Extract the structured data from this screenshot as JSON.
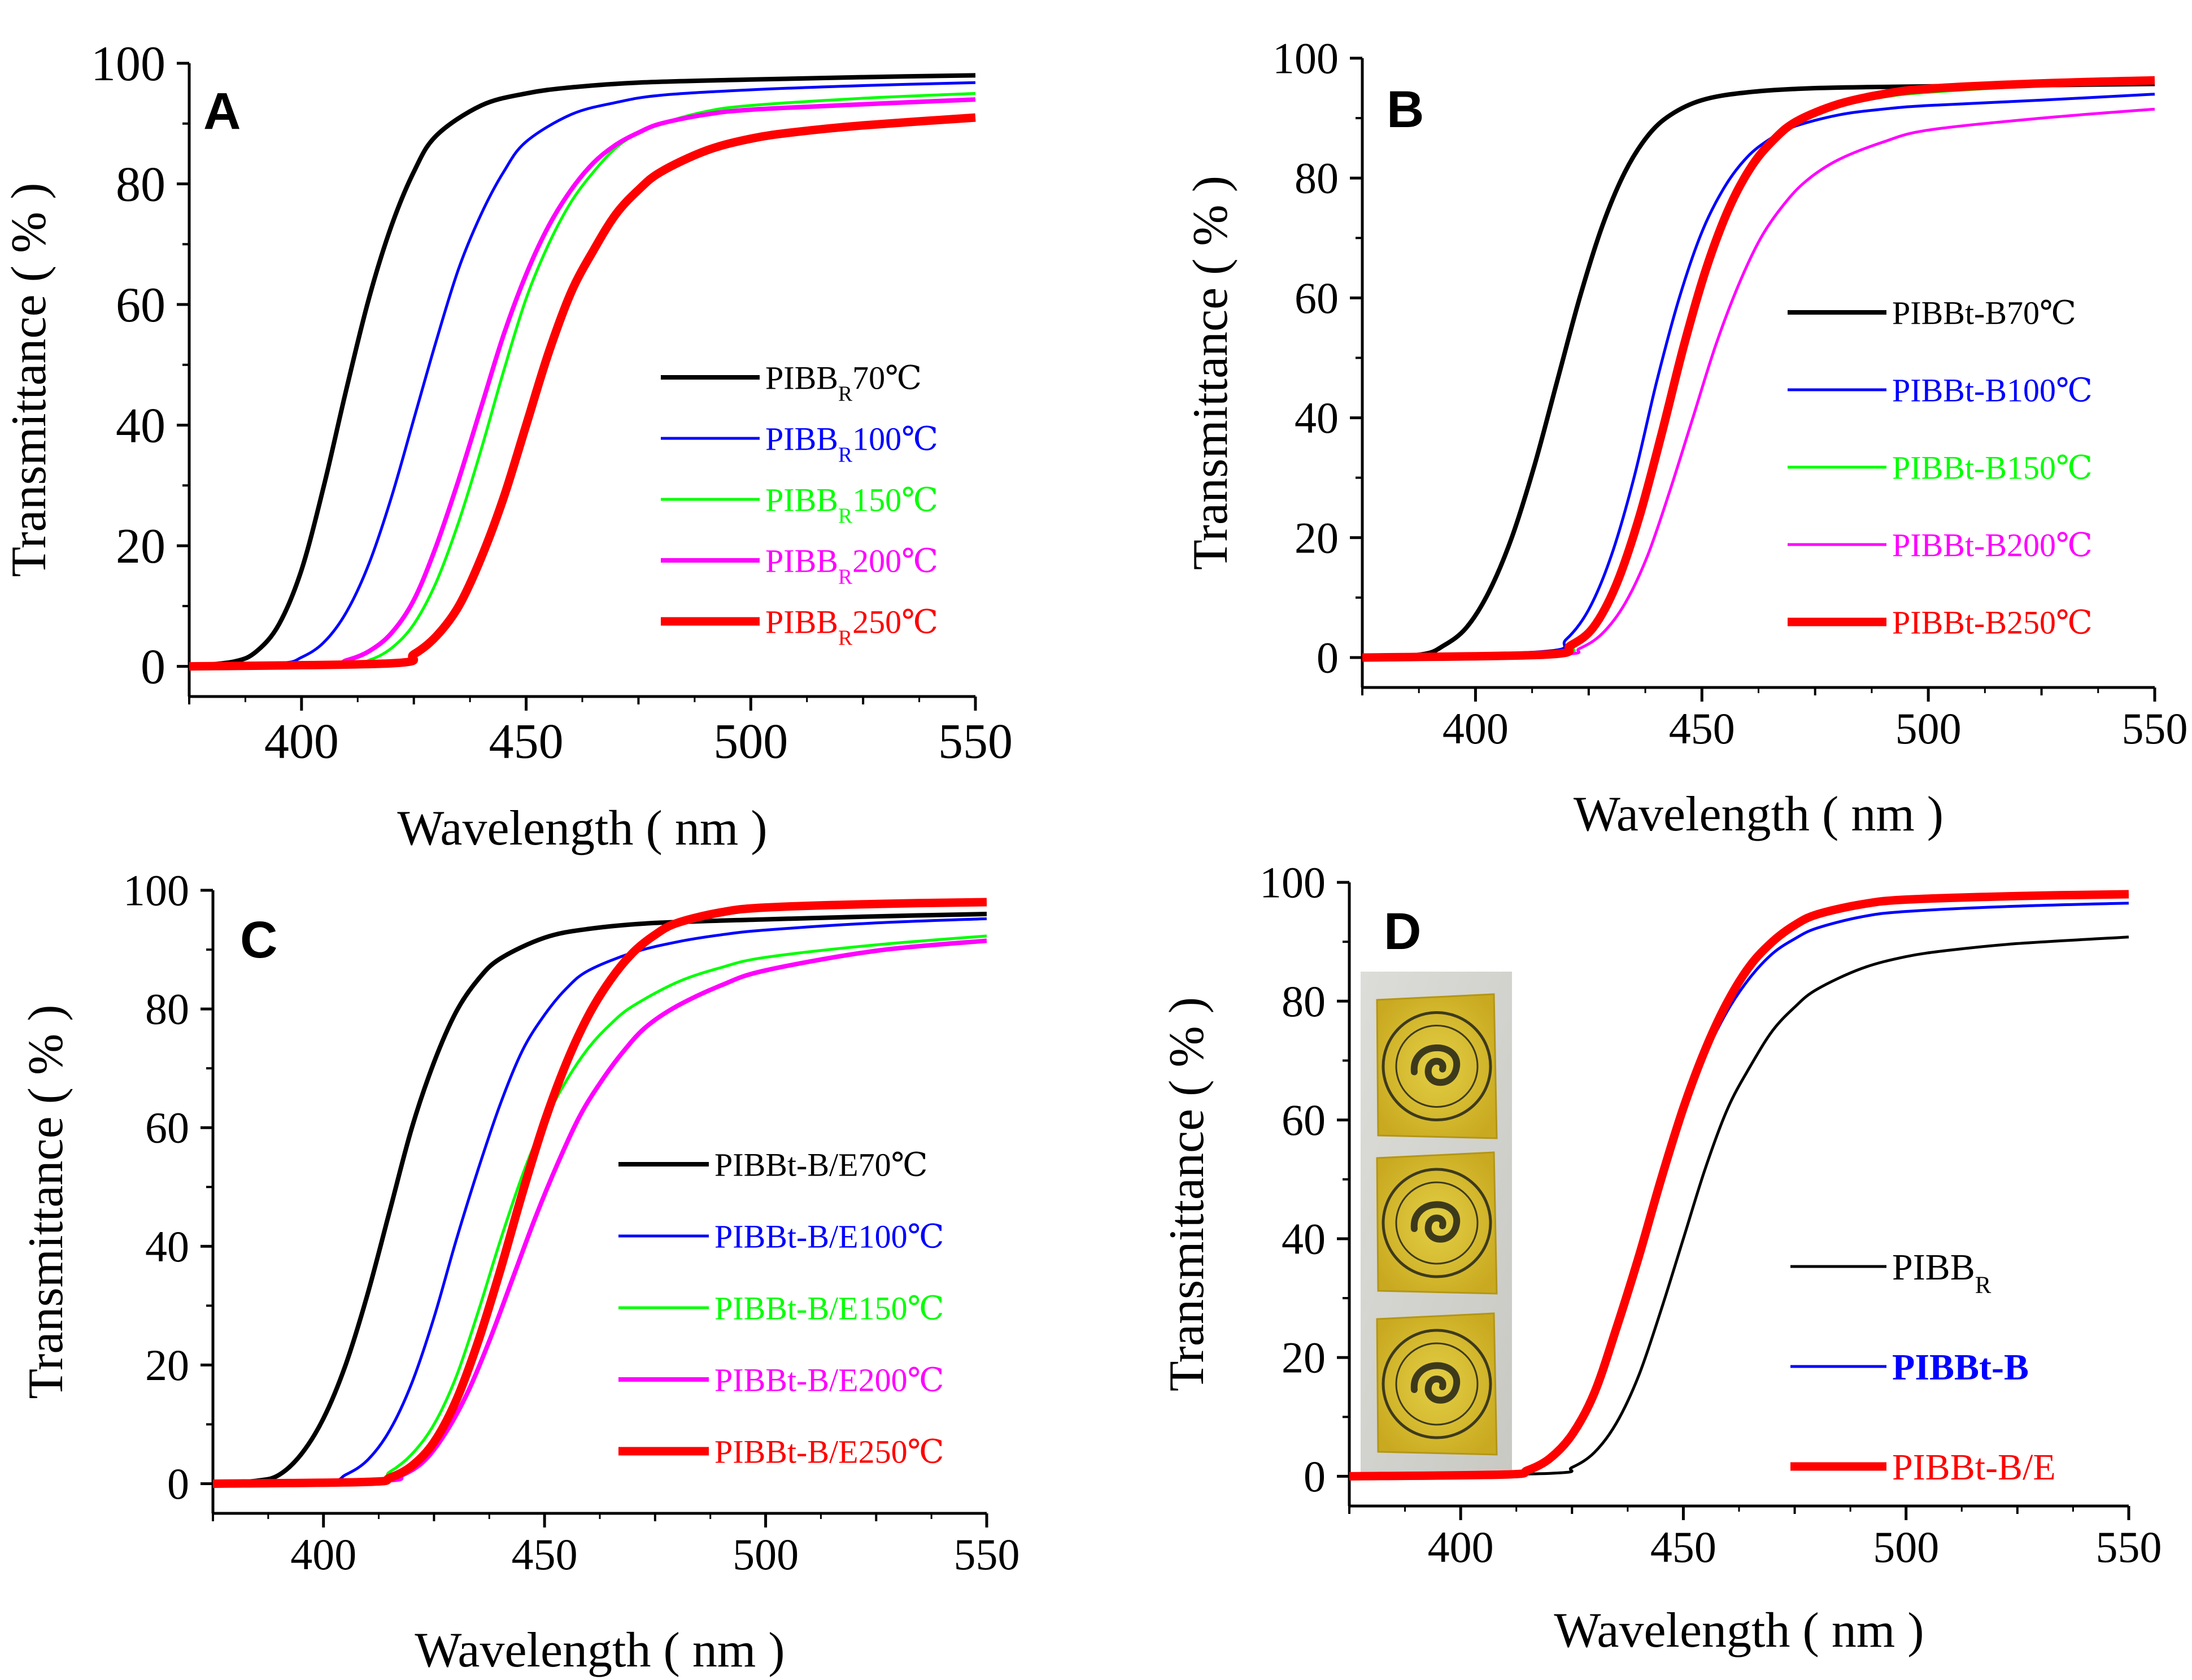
{
  "chart_data": [
    {
      "type": "line",
      "panel_label": "A",
      "xlabel": "Wavelength ( nm )",
      "ylabel": "Transmittance ( % )",
      "xlim": [
        375,
        550
      ],
      "ylim": [
        -5,
        100
      ],
      "xticks": [
        400,
        450,
        500,
        550
      ],
      "yticks": [
        0,
        20,
        40,
        60,
        80,
        100
      ],
      "xtick_labels": [
        "400",
        "450",
        "500",
        "550"
      ],
      "ytick_labels": [
        "0",
        "20",
        "40",
        "60",
        "80",
        "100"
      ],
      "legend_position": "center-right",
      "series": [
        {
          "name_main": "PIBB",
          "name_sub": "R",
          "name_tail": "70℃",
          "color": "#000000",
          "thickness": "medium",
          "x": [
            375,
            385,
            390,
            395,
            400,
            405,
            410,
            415,
            420,
            425,
            430,
            440,
            450,
            460,
            475,
            500,
            525,
            550
          ],
          "y": [
            0,
            0.8,
            2.5,
            7,
            16,
            30,
            46,
            61,
            73,
            82,
            88,
            93,
            95,
            96,
            96.8,
            97.3,
            97.7,
            98
          ]
        },
        {
          "name_main": "PIBB",
          "name_sub": "R",
          "name_tail": "100℃",
          "color": "#0000ff",
          "thickness": "thin",
          "x": [
            375,
            395,
            400,
            405,
            410,
            415,
            420,
            425,
            430,
            435,
            440,
            445,
            450,
            460,
            470,
            480,
            500,
            525,
            550
          ],
          "y": [
            0,
            0.5,
            1.5,
            4,
            9,
            17,
            28,
            41,
            54,
            66,
            75,
            82,
            87,
            91.5,
            93.5,
            94.7,
            95.6,
            96.3,
            96.8
          ]
        },
        {
          "name_main": "PIBB",
          "name_sub": "R",
          "name_tail": "150℃",
          "color": "#00ff00",
          "thickness": "thin",
          "x": [
            375,
            410,
            415,
            420,
            425,
            430,
            435,
            440,
            445,
            450,
            455,
            460,
            465,
            470,
            475,
            480,
            490,
            500,
            525,
            550
          ],
          "y": [
            0,
            0.2,
            1,
            3,
            7,
            14,
            24,
            36,
            49,
            61,
            70,
            77,
            82,
            86,
            88.5,
            90,
            92,
            93,
            94.2,
            95
          ]
        },
        {
          "name_main": "PIBB",
          "name_sub": "R",
          "name_tail": "200℃",
          "color": "#ff00ff",
          "thickness": "medium",
          "x": [
            375,
            405,
            410,
            415,
            420,
            425,
            430,
            435,
            440,
            445,
            450,
            455,
            460,
            465,
            470,
            475,
            480,
            490,
            500,
            525,
            550
          ],
          "y": [
            0,
            0.3,
            1,
            2.5,
            5.5,
            11,
            20,
            31,
            43,
            55,
            65,
            73,
            79,
            83.5,
            86.5,
            88.5,
            90,
            91.5,
            92.3,
            93.2,
            94
          ]
        },
        {
          "name_main": "PIBB",
          "name_sub": "R",
          "name_tail": "250℃",
          "color": "#ff0000",
          "thickness": "thick",
          "x": [
            375,
            420,
            425,
            430,
            435,
            440,
            445,
            450,
            455,
            460,
            465,
            470,
            475,
            480,
            490,
            500,
            510,
            525,
            550
          ],
          "y": [
            0,
            0.5,
            2,
            5,
            10,
            18,
            28,
            40,
            52,
            62,
            69,
            75,
            79,
            82,
            85.5,
            87.5,
            88.6,
            89.7,
            91
          ]
        }
      ]
    },
    {
      "type": "line",
      "panel_label": "B",
      "xlabel": "Wavelength ( nm )",
      "ylabel": "Transmittance ( % )",
      "xlim": [
        375,
        550
      ],
      "ylim": [
        -5,
        100
      ],
      "xticks": [
        400,
        450,
        500,
        550
      ],
      "yticks": [
        0,
        20,
        40,
        60,
        80,
        100
      ],
      "xtick_labels": [
        "400",
        "450",
        "500",
        "550"
      ],
      "ytick_labels": [
        "0",
        "20",
        "40",
        "60",
        "80",
        "100"
      ],
      "legend_position": "center-right",
      "series": [
        {
          "name_main": "PIBBt-B70℃",
          "name_sub": "",
          "name_tail": "",
          "color": "#000000",
          "thickness": "medium",
          "x": [
            375,
            388,
            393,
            398,
            403,
            408,
            413,
            418,
            423,
            428,
            433,
            438,
            443,
            450,
            460,
            475,
            500,
            525,
            550
          ],
          "y": [
            0,
            0.5,
            2,
            5,
            11,
            20,
            32,
            46,
            60,
            72,
            81,
            87,
            90.5,
            93,
            94.3,
            95,
            95.3,
            95.5,
            95.7
          ]
        },
        {
          "name_main": "PIBBt-B100℃",
          "name_sub": "",
          "name_tail": "",
          "color": "#0000ff",
          "thickness": "thin",
          "x": [
            375,
            415,
            420,
            425,
            430,
            435,
            440,
            445,
            450,
            455,
            460,
            465,
            470,
            480,
            490,
            500,
            525,
            550
          ],
          "y": [
            0,
            1,
            3,
            8,
            17,
            30,
            46,
            60,
            71,
            78.5,
            83.5,
            86.5,
            88.5,
            90.5,
            91.5,
            92.1,
            93,
            94
          ]
        },
        {
          "name_main": "PIBBt-B150℃",
          "name_sub": "",
          "name_tail": "",
          "color": "#00ff00",
          "thickness": "thin",
          "x": [
            375,
            417,
            422,
            427,
            432,
            437,
            442,
            447,
            452,
            457,
            462,
            467,
            472,
            480,
            490,
            500,
            525,
            550
          ],
          "y": [
            0,
            0.5,
            2,
            6,
            14,
            26,
            41,
            56,
            68,
            77,
            83,
            87,
            89.5,
            92,
            93.5,
            94.3,
            95.4,
            96
          ]
        },
        {
          "name_main": "PIBBt-B200℃",
          "name_sub": "",
          "name_tail": "",
          "color": "#ff00ff",
          "thickness": "thin",
          "x": [
            375,
            418,
            423,
            428,
            433,
            438,
            443,
            448,
            453,
            458,
            463,
            468,
            473,
            480,
            490,
            500,
            525,
            550
          ],
          "y": [
            0,
            0.5,
            1.5,
            4,
            9,
            17,
            28,
            40,
            52,
            62,
            70,
            75.5,
            79.5,
            83,
            86,
            88,
            90,
            91.5
          ]
        },
        {
          "name_main": "PIBBt-B250℃",
          "name_sub": "",
          "name_tail": "",
          "color": "#ff0000",
          "thickness": "thick",
          "x": [
            375,
            416,
            421,
            426,
            431,
            436,
            441,
            446,
            451,
            456,
            461,
            466,
            471,
            480,
            490,
            500,
            525,
            550
          ],
          "y": [
            0,
            0.5,
            2,
            5,
            12,
            23,
            37,
            52,
            65,
            75,
            82,
            86.5,
            89.5,
            92.3,
            94,
            94.9,
            95.8,
            96.3
          ]
        }
      ]
    },
    {
      "type": "line",
      "panel_label": "C",
      "xlabel": "Wavelength ( nm )",
      "ylabel": "Transmittance ( % )",
      "xlim": [
        375,
        550
      ],
      "ylim": [
        -5,
        100
      ],
      "xticks": [
        400,
        450,
        500,
        550
      ],
      "yticks": [
        0,
        20,
        40,
        60,
        80,
        100
      ],
      "xtick_labels": [
        "400",
        "450",
        "500",
        "550"
      ],
      "ytick_labels": [
        "0",
        "20",
        "40",
        "60",
        "80",
        "100"
      ],
      "legend_position": "center-right",
      "series": [
        {
          "name_main": "PIBBt-B/E70℃",
          "name_sub": "",
          "name_tail": "",
          "color": "#000000",
          "thickness": "medium",
          "x": [
            375,
            385,
            390,
            395,
            400,
            405,
            410,
            415,
            420,
            425,
            430,
            435,
            440,
            450,
            460,
            475,
            500,
            525,
            550
          ],
          "y": [
            0,
            0.5,
            1.5,
            5,
            11,
            20,
            32,
            46,
            60,
            71,
            79.5,
            85,
            88.5,
            92,
            93.5,
            94.5,
            95.1,
            95.6,
            96
          ]
        },
        {
          "name_main": "PIBBt-B/E100℃",
          "name_sub": "",
          "name_tail": "",
          "color": "#0000ff",
          "thickness": "thin",
          "x": [
            375,
            400,
            405,
            410,
            415,
            420,
            425,
            430,
            435,
            440,
            445,
            450,
            455,
            460,
            470,
            480,
            490,
            500,
            525,
            550
          ],
          "y": [
            0,
            0.3,
            1.5,
            4,
            9,
            17,
            28,
            41,
            53,
            64,
            73,
            79,
            83.5,
            86.5,
            89.5,
            91.3,
            92.5,
            93.3,
            94.5,
            95.2
          ]
        },
        {
          "name_main": "PIBBt-B/E150℃",
          "name_sub": "",
          "name_tail": "",
          "color": "#00ff00",
          "thickness": "thin",
          "x": [
            375,
            410,
            415,
            420,
            425,
            430,
            435,
            440,
            445,
            450,
            455,
            460,
            465,
            470,
            480,
            490,
            500,
            525,
            550
          ],
          "y": [
            0,
            0.5,
            2,
            5,
            10,
            18,
            29,
            41,
            52,
            61,
            68,
            73.5,
            77.5,
            80.5,
            84.5,
            87,
            88.7,
            90.8,
            92.3
          ]
        },
        {
          "name_main": "PIBBt-B/E200℃",
          "name_sub": "",
          "name_tail": "",
          "color": "#ff00ff",
          "thickness": "medium",
          "x": [
            375,
            413,
            418,
            423,
            428,
            433,
            438,
            443,
            448,
            453,
            458,
            463,
            468,
            473,
            480,
            490,
            500,
            525,
            550
          ],
          "y": [
            0,
            0.5,
            1.5,
            4,
            9,
            16,
            25,
            35,
            45,
            54,
            62,
            68,
            73,
            77,
            80.5,
            84,
            86.5,
            89.8,
            91.5
          ]
        },
        {
          "name_main": "PIBBt-B/E250℃",
          "name_sub": "",
          "name_tail": "",
          "color": "#ff0000",
          "thickness": "thick",
          "x": [
            375,
            410,
            415,
            420,
            425,
            430,
            435,
            440,
            445,
            450,
            455,
            460,
            465,
            470,
            475,
            480,
            490,
            500,
            525,
            550
          ],
          "y": [
            0,
            0.3,
            1,
            3,
            7,
            14,
            24,
            36,
            49,
            61,
            71,
            79,
            85,
            89.5,
            92.5,
            94.5,
            96.3,
            97.1,
            97.7,
            98
          ]
        }
      ]
    },
    {
      "type": "line",
      "panel_label": "D",
      "xlabel": "Wavelength ( nm )",
      "ylabel": "Transmittance ( % )",
      "xlim": [
        375,
        550
      ],
      "ylim": [
        -5,
        100
      ],
      "xticks": [
        400,
        450,
        500,
        550
      ],
      "yticks": [
        0,
        20,
        40,
        60,
        80,
        100
      ],
      "xtick_labels": [
        "400",
        "450",
        "500",
        "550"
      ],
      "ytick_labels": [
        "0",
        "20",
        "40",
        "60",
        "80",
        "100"
      ],
      "legend_position": "lower-right",
      "inset": "photo of three yellow film samples printed with a circular emblem",
      "series": [
        {
          "name_main": "PIBB",
          "name_sub": "R",
          "name_tail": "",
          "color": "#000000",
          "thickness": "thin",
          "bold": false,
          "x": [
            375,
            420,
            425,
            430,
            435,
            440,
            445,
            450,
            455,
            460,
            465,
            470,
            475,
            480,
            490,
            500,
            510,
            525,
            550
          ],
          "y": [
            0,
            0.5,
            1.5,
            4,
            9,
            17,
            28,
            40,
            52,
            62,
            69,
            75,
            79,
            82,
            85.5,
            87.5,
            88.6,
            89.7,
            90.8
          ]
        },
        {
          "name_main": "PIBBt-B",
          "name_sub": "",
          "name_tail": "",
          "color": "#0000ff",
          "thickness": "thin",
          "bold": true,
          "x": [
            375,
            410,
            415,
            420,
            425,
            430,
            435,
            440,
            445,
            450,
            455,
            460,
            465,
            470,
            475,
            480,
            490,
            500,
            525,
            550
          ],
          "y": [
            0,
            0.3,
            1,
            3,
            7,
            14,
            24,
            36,
            49,
            61,
            71,
            78.5,
            84,
            88,
            90.5,
            92.3,
            94.2,
            95.1,
            96,
            96.5
          ]
        },
        {
          "name_main": "PIBBt-B/E",
          "name_sub": "",
          "name_tail": "",
          "color": "#ff0000",
          "thickness": "thick",
          "bold": false,
          "x": [
            375,
            410,
            415,
            420,
            425,
            430,
            435,
            440,
            445,
            450,
            455,
            460,
            465,
            470,
            475,
            480,
            490,
            500,
            525,
            550
          ],
          "y": [
            0,
            0.3,
            1,
            3,
            7,
            14,
            25,
            37,
            50,
            62,
            72,
            80,
            86,
            90,
            92.8,
            94.6,
            96.3,
            97.1,
            97.7,
            98
          ]
        }
      ]
    }
  ]
}
